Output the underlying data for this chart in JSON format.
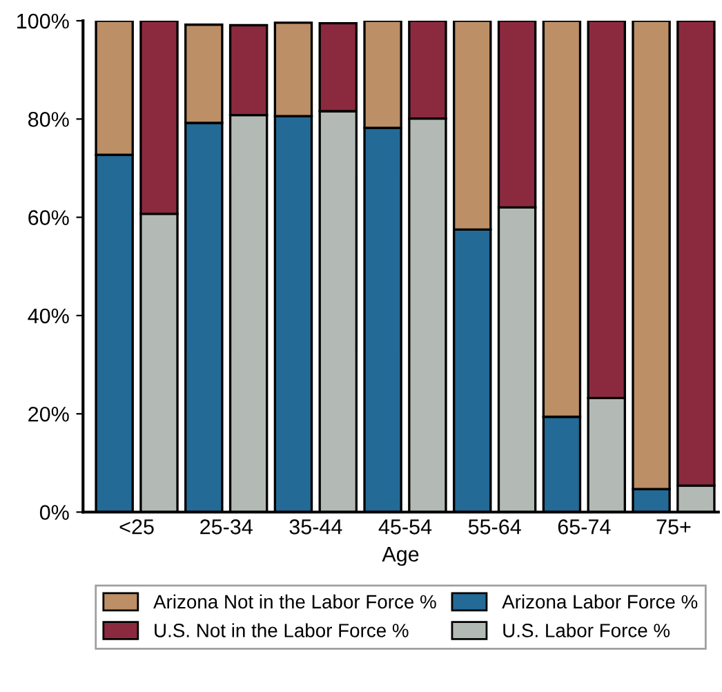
{
  "chart_data": {
    "type": "bar",
    "stacked": true,
    "xlabel": "Age",
    "categories": [
      "<25",
      null,
      "25-34",
      null,
      "35-44",
      null,
      "45-54",
      null,
      "55-64",
      null,
      "65-74",
      null,
      "75+",
      null
    ],
    "series": [
      {
        "name": "Arizona Labor Force %",
        "color": "#236a96",
        "values": [
          72.7,
          null,
          79.2,
          null,
          80.6,
          null,
          78.2,
          null,
          57.5,
          null,
          19.4,
          null,
          4.7,
          null
        ]
      },
      {
        "name": "Arizona Not in the Labor Force %",
        "color": "#bc8f66",
        "values": [
          27.3,
          null,
          20.0,
          null,
          19.0,
          null,
          21.8,
          null,
          42.5,
          null,
          80.6,
          null,
          95.3,
          null
        ]
      },
      {
        "name": "U.S. Labor Force %",
        "color": "#b3bab5",
        "values": [
          null,
          60.7,
          null,
          80.8,
          null,
          81.6,
          null,
          80.1,
          null,
          62.0,
          null,
          23.2,
          null,
          5.4
        ]
      },
      {
        "name": "U.S. Not in the Labor Force %",
        "color": "#8b2a3e",
        "values": [
          null,
          39.3,
          null,
          18.3,
          null,
          17.9,
          null,
          19.9,
          null,
          38.0,
          null,
          76.8,
          null,
          94.6
        ]
      }
    ],
    "ylim": [
      0,
      100
    ],
    "yticks": [
      {
        "value": 0,
        "label": "0%"
      },
      {
        "value": 20,
        "label": "20%"
      },
      {
        "value": 40,
        "label": "40%"
      },
      {
        "value": 60,
        "label": "60%"
      },
      {
        "value": 80,
        "label": "80%"
      },
      {
        "value": 100,
        "label": "100%"
      }
    ],
    "legend": "bottom",
    "grid": false
  }
}
